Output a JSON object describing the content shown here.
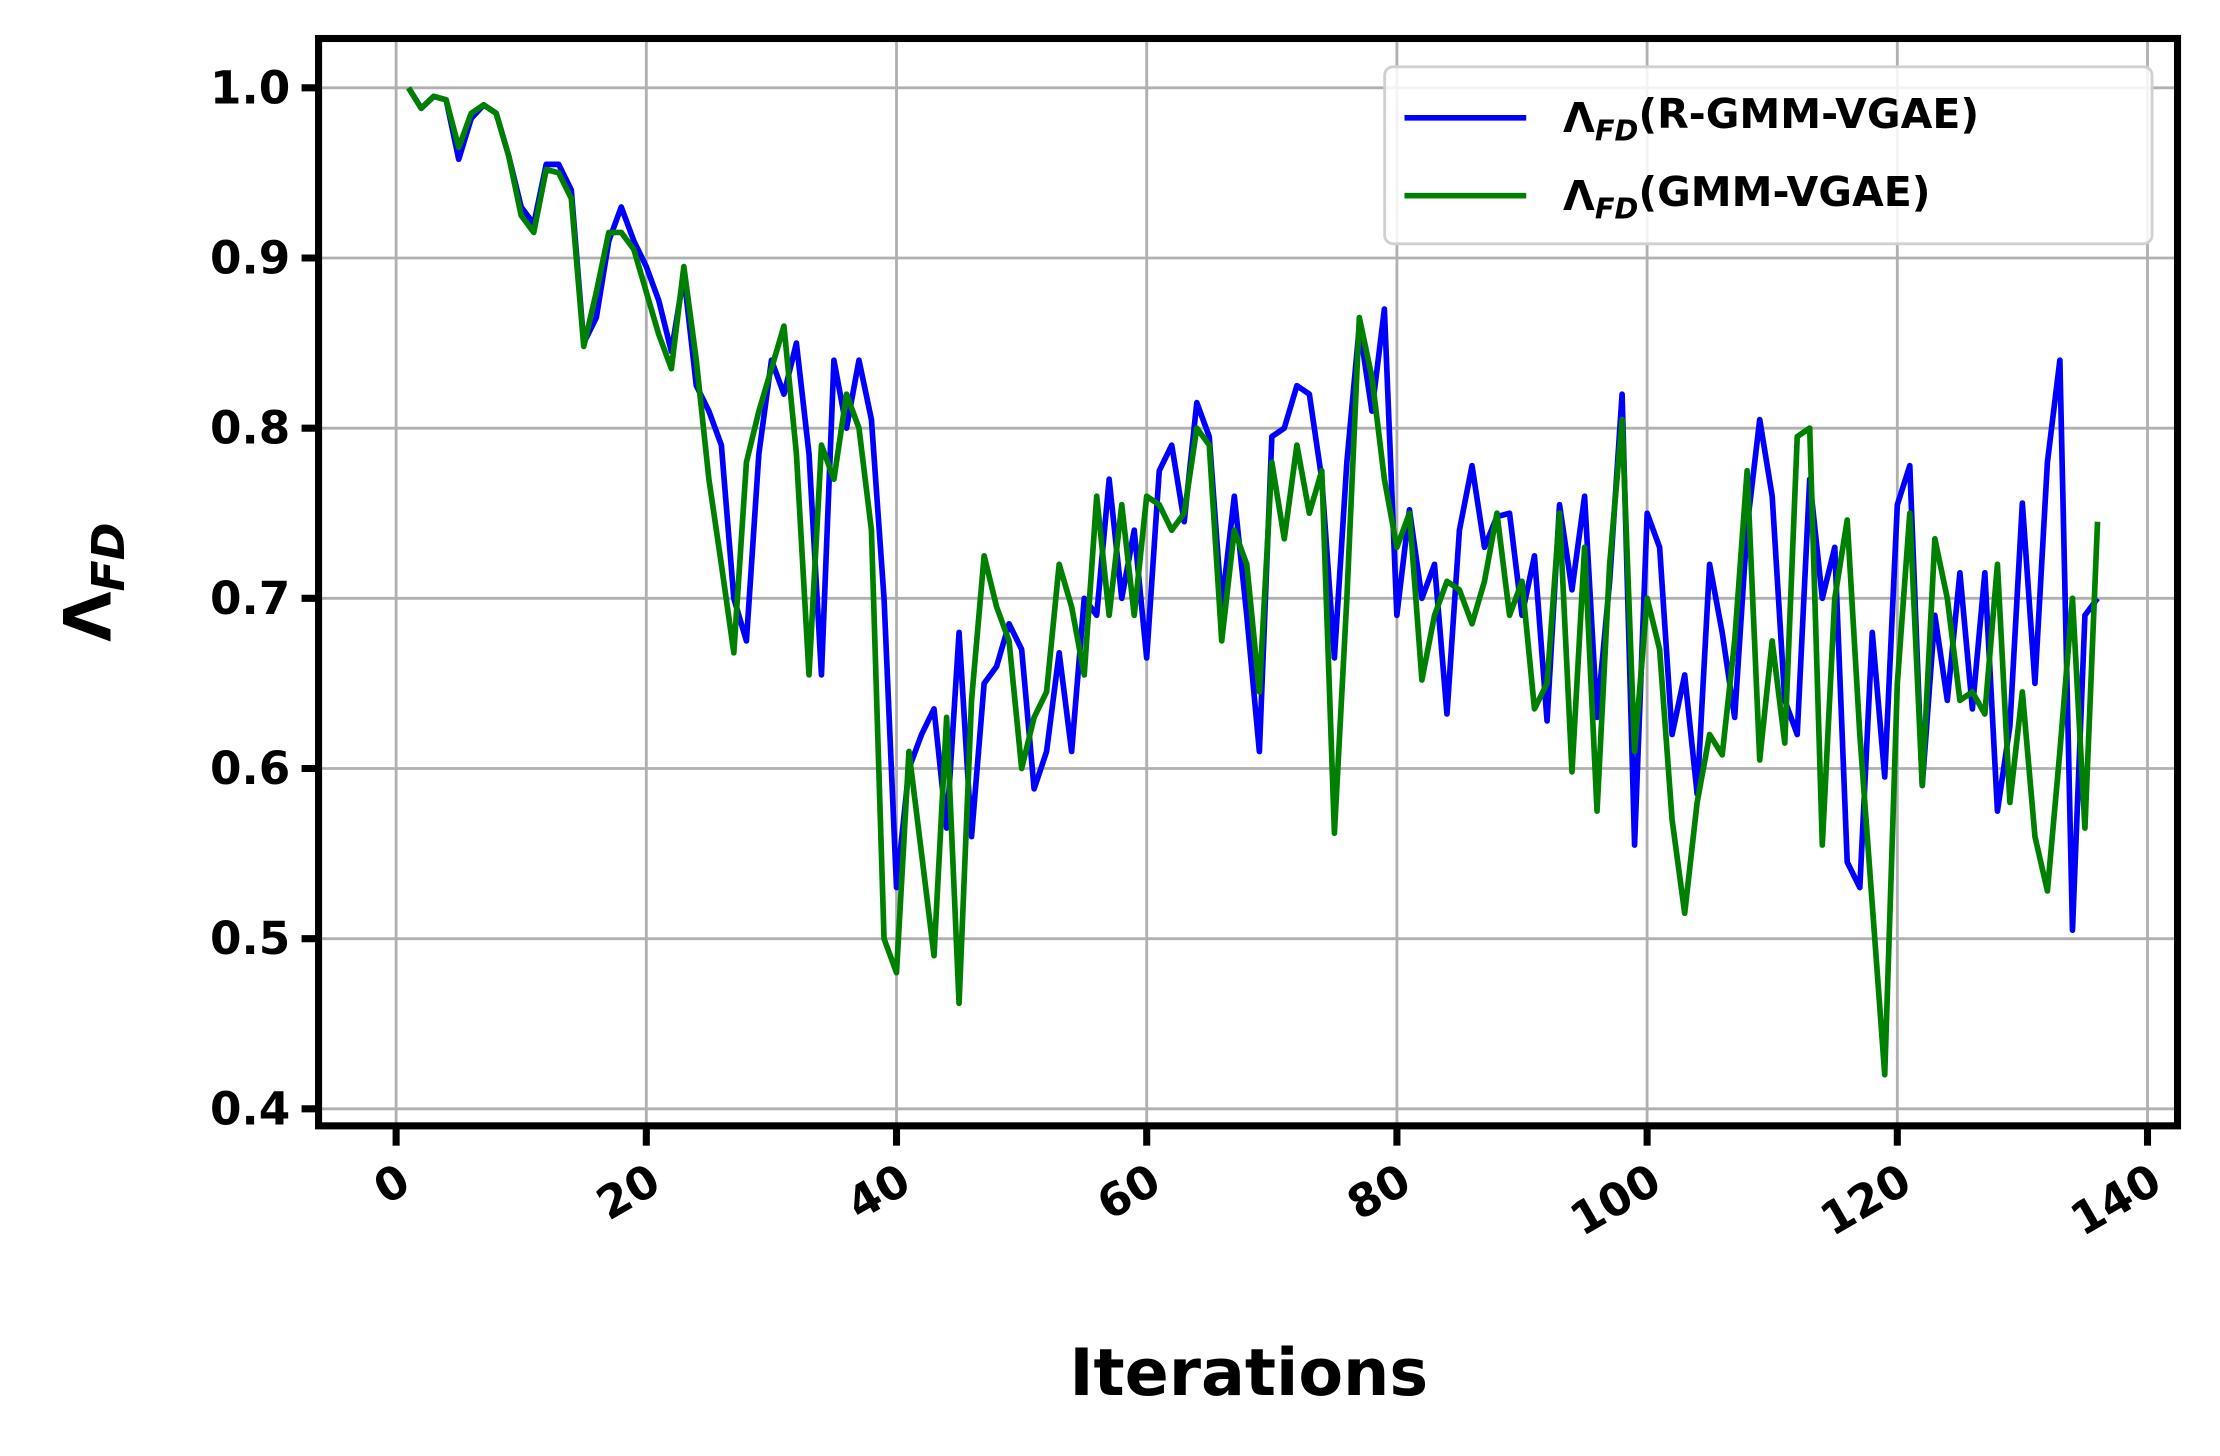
{
  "chart_data": {
    "type": "line",
    "xlabel": "Iterations",
    "ylabel": "ΛFD",
    "x": [
      1,
      2,
      3,
      4,
      5,
      6,
      7,
      8,
      9,
      10,
      11,
      12,
      13,
      14,
      15,
      16,
      17,
      18,
      19,
      20,
      21,
      22,
      23,
      24,
      25,
      26,
      27,
      28,
      29,
      30,
      31,
      32,
      33,
      34,
      35,
      36,
      37,
      38,
      39,
      40,
      41,
      42,
      43,
      44,
      45,
      46,
      47,
      48,
      49,
      50,
      51,
      52,
      53,
      54,
      55,
      56,
      57,
      58,
      59,
      60,
      61,
      62,
      63,
      64,
      65,
      66,
      67,
      68,
      69,
      70,
      71,
      72,
      73,
      74,
      75,
      76,
      77,
      78,
      79,
      80,
      81,
      82,
      83,
      84,
      85,
      86,
      87,
      88,
      89,
      90,
      91,
      92,
      93,
      94,
      95,
      96,
      97,
      98,
      99,
      100,
      101,
      102,
      103,
      104,
      105,
      106,
      107,
      108,
      109,
      110,
      111,
      112,
      113,
      114,
      115,
      116,
      117,
      118,
      119,
      120,
      121,
      122,
      123,
      124,
      125,
      126,
      127,
      128,
      129,
      130,
      131,
      132,
      133,
      134,
      135,
      136
    ],
    "series": [
      {
        "name": "ΛFD(R-GMM-VGAE)",
        "color": "#0000ff",
        "values": [
          1.0,
          0.988,
          0.995,
          0.993,
          0.958,
          0.982,
          0.99,
          0.985,
          0.96,
          0.93,
          0.92,
          0.955,
          0.955,
          0.94,
          0.85,
          0.865,
          0.91,
          0.93,
          0.91,
          0.895,
          0.875,
          0.845,
          0.89,
          0.825,
          0.81,
          0.79,
          0.7,
          0.675,
          0.785,
          0.84,
          0.82,
          0.85,
          0.785,
          0.655,
          0.84,
          0.8,
          0.84,
          0.805,
          0.7,
          0.53,
          0.6,
          0.62,
          0.635,
          0.565,
          0.68,
          0.56,
          0.65,
          0.66,
          0.685,
          0.67,
          0.588,
          0.61,
          0.668,
          0.61,
          0.7,
          0.69,
          0.77,
          0.7,
          0.74,
          0.665,
          0.775,
          0.79,
          0.745,
          0.815,
          0.795,
          0.695,
          0.76,
          0.69,
          0.61,
          0.795,
          0.8,
          0.825,
          0.82,
          0.77,
          0.665,
          0.78,
          0.86,
          0.81,
          0.87,
          0.69,
          0.752,
          0.7,
          0.72,
          0.632,
          0.74,
          0.778,
          0.73,
          0.748,
          0.75,
          0.69,
          0.725,
          0.628,
          0.755,
          0.705,
          0.76,
          0.63,
          0.71,
          0.82,
          0.555,
          0.75,
          0.73,
          0.62,
          0.655,
          0.585,
          0.72,
          0.68,
          0.63,
          0.742,
          0.805,
          0.76,
          0.64,
          0.62,
          0.77,
          0.7,
          0.73,
          0.545,
          0.53,
          0.68,
          0.595,
          0.755,
          0.778,
          0.59,
          0.69,
          0.64,
          0.715,
          0.635,
          0.715,
          0.575,
          0.625,
          0.756,
          0.65,
          0.78,
          0.84,
          0.505,
          0.69,
          0.7
        ]
      },
      {
        "name": "ΛFD(GMM-VGAE)",
        "color": "#008000",
        "values": [
          1.0,
          0.988,
          0.995,
          0.993,
          0.965,
          0.985,
          0.99,
          0.985,
          0.96,
          0.925,
          0.915,
          0.952,
          0.95,
          0.935,
          0.848,
          0.88,
          0.915,
          0.915,
          0.905,
          0.88,
          0.855,
          0.835,
          0.895,
          0.84,
          0.77,
          0.72,
          0.668,
          0.78,
          0.81,
          0.835,
          0.86,
          0.785,
          0.655,
          0.79,
          0.77,
          0.82,
          0.8,
          0.74,
          0.5,
          0.48,
          0.61,
          0.55,
          0.49,
          0.63,
          0.462,
          0.64,
          0.725,
          0.695,
          0.675,
          0.6,
          0.63,
          0.645,
          0.72,
          0.695,
          0.655,
          0.76,
          0.69,
          0.755,
          0.69,
          0.76,
          0.755,
          0.74,
          0.75,
          0.8,
          0.79,
          0.675,
          0.74,
          0.72,
          0.645,
          0.78,
          0.735,
          0.79,
          0.75,
          0.775,
          0.562,
          0.7,
          0.865,
          0.83,
          0.77,
          0.73,
          0.75,
          0.652,
          0.69,
          0.71,
          0.705,
          0.685,
          0.71,
          0.75,
          0.69,
          0.71,
          0.635,
          0.65,
          0.75,
          0.598,
          0.73,
          0.575,
          0.72,
          0.805,
          0.61,
          0.7,
          0.67,
          0.57,
          0.515,
          0.58,
          0.62,
          0.608,
          0.675,
          0.775,
          0.605,
          0.675,
          0.615,
          0.795,
          0.8,
          0.555,
          0.7,
          0.746,
          0.62,
          0.52,
          0.42,
          0.65,
          0.75,
          0.59,
          0.735,
          0.7,
          0.64,
          0.645,
          0.632,
          0.72,
          0.58,
          0.645,
          0.56,
          0.528,
          0.61,
          0.7,
          0.565,
          0.745
        ]
      }
    ],
    "xlim": [
      -6.2,
      142.4
    ],
    "ylim": [
      0.39,
      1.029
    ],
    "xticks": [
      0,
      20,
      40,
      60,
      80,
      100,
      120,
      140
    ],
    "yticks": [
      0.4,
      0.5,
      0.6,
      0.7,
      0.8,
      0.9,
      {
        "value": 1,
        "label": "1.0"
      }
    ],
    "grid": true,
    "legend": "upper right"
  }
}
